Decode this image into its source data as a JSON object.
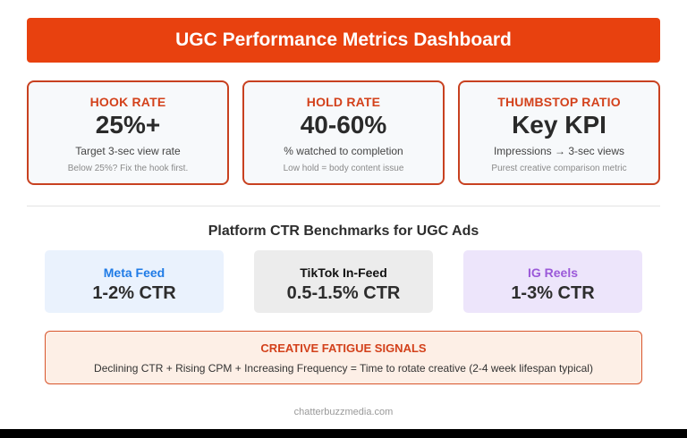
{
  "header": {
    "title": "UGC Performance Metrics Dashboard"
  },
  "kpis": [
    {
      "label": "HOOK RATE",
      "value": "25%+",
      "description": "Target 3-sec view rate",
      "note": "Below 25%? Fix the hook first."
    },
    {
      "label": "HOLD RATE",
      "value": "40-60%",
      "description": "% watched to completion",
      "note": "Low hold = body content issue"
    },
    {
      "label": "THUMBSTOP RATIO",
      "value": "Key KPI",
      "description": "Impressions → 3-sec views",
      "note": "Purest creative comparison metric"
    }
  ],
  "benchmarks": {
    "title": "Platform CTR Benchmarks for UGC Ads",
    "platforms": [
      {
        "name": "Meta Feed",
        "ctr": "1-2% CTR",
        "color": "#1f7be6"
      },
      {
        "name": "TikTok In-Feed",
        "ctr": "0.5-1.5% CTR",
        "color": "#111111"
      },
      {
        "name": "IG Reels",
        "ctr": "1-3% CTR",
        "color": "#9b59d9"
      }
    ]
  },
  "fatigue": {
    "title": "CREATIVE FATIGUE SIGNALS",
    "text": "Declining CTR + Rising CPM + Increasing Frequency = Time to rotate creative (2-4 week lifespan typical)"
  },
  "footer": {
    "text": "chatterbuzzmedia.com"
  },
  "colors": {
    "accent": "#e8410f",
    "card_border": "#c84120",
    "label": "#d3411b"
  }
}
